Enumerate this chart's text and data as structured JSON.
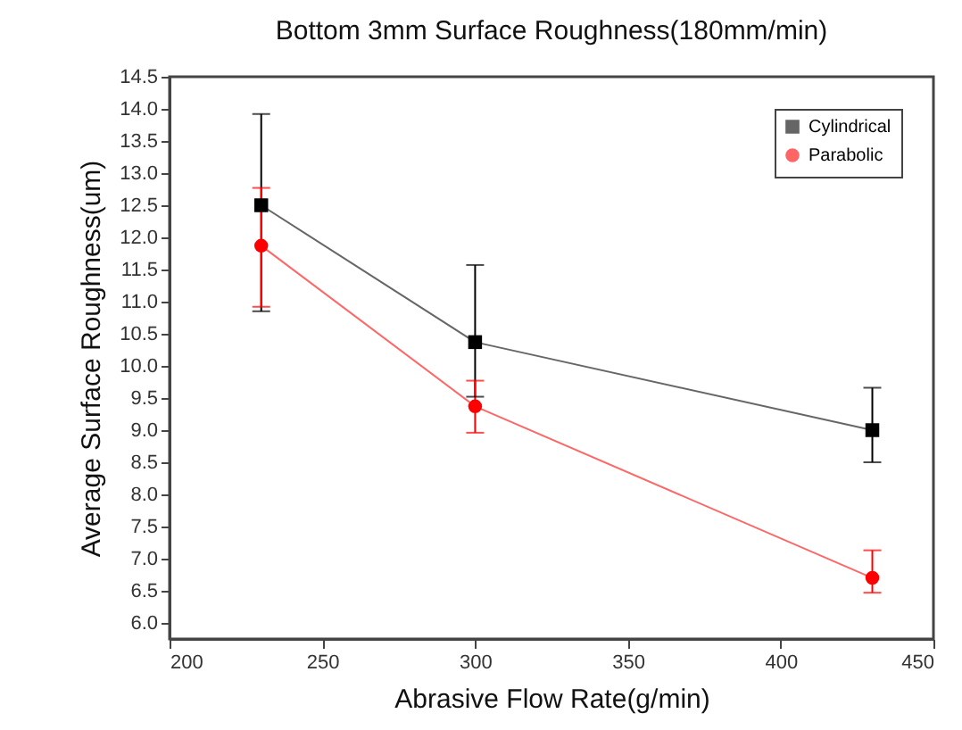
{
  "chart_data": {
    "type": "line",
    "title": "Bottom 3mm Surface Roughness(180mm/min)",
    "xlabel": "Abrasive Flow Rate(g/min)",
    "ylabel": "Average Surface Roughness(um)",
    "x": [
      230,
      300,
      430
    ],
    "series": [
      {
        "name": "Cylindrical",
        "color": "#000000",
        "marker": "square",
        "values": [
          12.5,
          10.37,
          9.0
        ],
        "errors": [
          [
            10.85,
            13.92
          ],
          [
            9.52,
            11.57
          ],
          [
            8.5,
            9.66
          ]
        ]
      },
      {
        "name": "Parabolic",
        "color": "#ff0000",
        "marker": "circle",
        "values": [
          11.87,
          9.37,
          6.7
        ],
        "errors": [
          [
            10.92,
            12.77
          ],
          [
            8.96,
            9.77
          ],
          [
            6.47,
            7.13
          ]
        ]
      }
    ],
    "xlim": [
      200,
      450
    ],
    "xticks": [
      200,
      250,
      300,
      350,
      400,
      450
    ],
    "ylim": [
      5.75,
      14.5
    ],
    "yticks": [
      {
        "value": 6,
        "label": "6.0"
      },
      6.5,
      {
        "value": 7,
        "label": "7.0"
      },
      7.5,
      {
        "value": 8,
        "label": "8.0"
      },
      8.5,
      {
        "value": 9,
        "label": "9.0"
      },
      9.5,
      {
        "value": 10,
        "label": "10.0"
      },
      10.5,
      {
        "value": 11,
        "label": "11.0"
      },
      11.5,
      {
        "value": 12,
        "label": "12.0"
      },
      12.5,
      {
        "value": 13,
        "label": "13.0"
      },
      13.5,
      {
        "value": 14,
        "label": "14.0"
      },
      14.5
    ],
    "legend": "top right",
    "grid": false,
    "line_style": "solid"
  }
}
